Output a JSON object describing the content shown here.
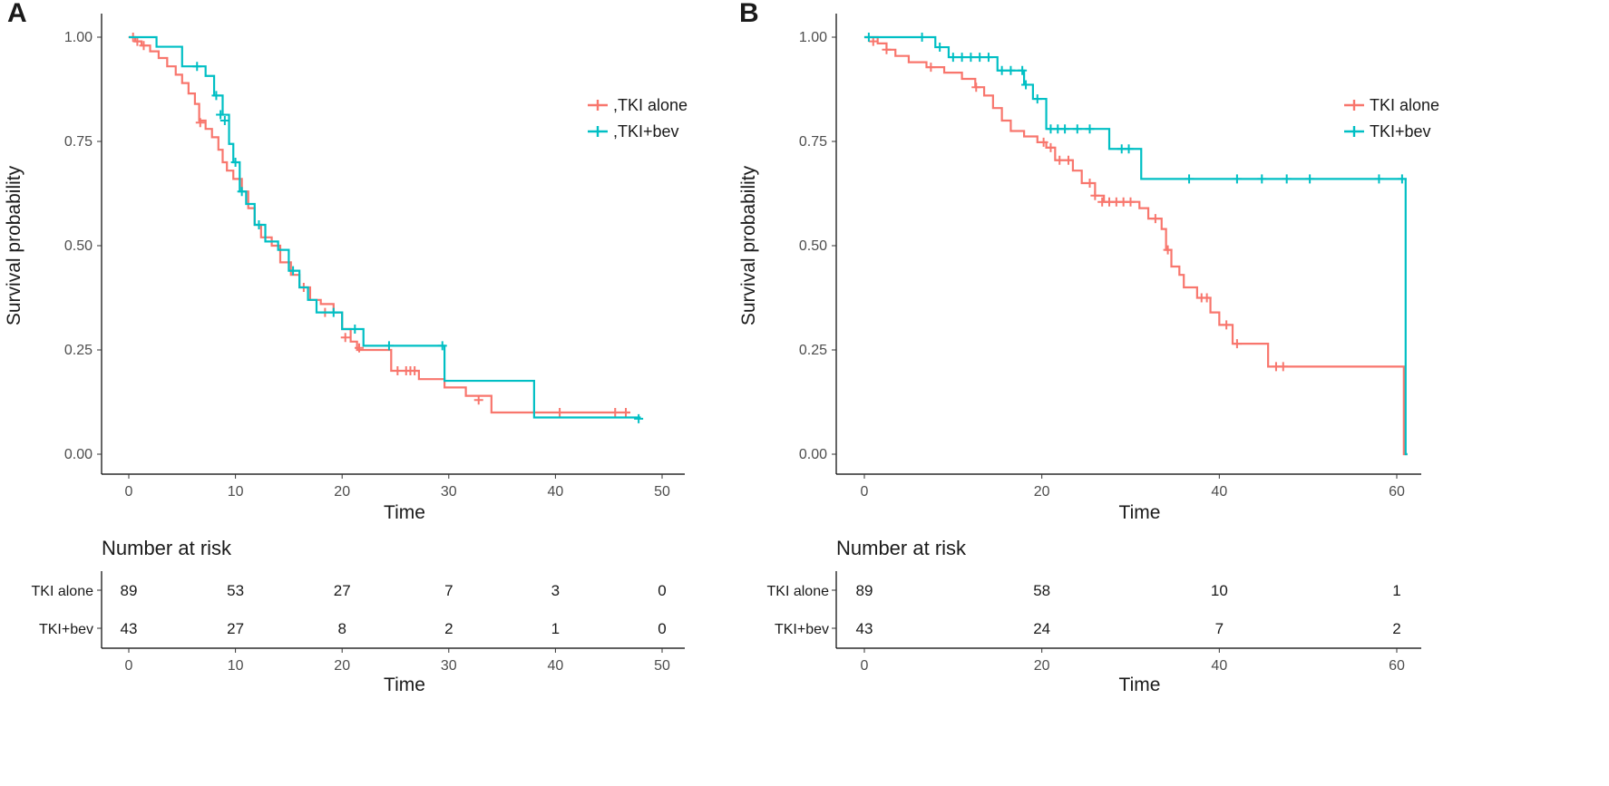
{
  "chart_data": [
    {
      "type": "line",
      "panel": "A",
      "title": "",
      "xlabel": "Time",
      "ylabel": "Survival probability",
      "xlim": [
        0,
        50
      ],
      "ylim": [
        0,
        1
      ],
      "x_ticks": [
        "0",
        "10",
        "20",
        "30",
        "40",
        "50"
      ],
      "y_ticks": [
        "0.00",
        "0.25",
        "0.50",
        "0.75",
        "1.00"
      ],
      "grid": false,
      "legend_position": "right",
      "legend": [
        ",TKI alone",
        ",TKI+bev"
      ],
      "series": [
        {
          "name": "TKI alone",
          "color": "#f8766d",
          "steps": [
            [
              0,
              1.0
            ],
            [
              0.6,
              0.99
            ],
            [
              1.2,
              0.98
            ],
            [
              2.0,
              0.966
            ],
            [
              2.8,
              0.95
            ],
            [
              3.6,
              0.93
            ],
            [
              4.4,
              0.91
            ],
            [
              5.0,
              0.89
            ],
            [
              5.6,
              0.865
            ],
            [
              6.2,
              0.84
            ],
            [
              6.6,
              0.8
            ],
            [
              7.2,
              0.78
            ],
            [
              7.8,
              0.76
            ],
            [
              8.4,
              0.73
            ],
            [
              8.8,
              0.7
            ],
            [
              9.2,
              0.68
            ],
            [
              9.8,
              0.66
            ],
            [
              10.6,
              0.63
            ],
            [
              11.2,
              0.59
            ],
            [
              11.8,
              0.55
            ],
            [
              12.4,
              0.52
            ],
            [
              13.4,
              0.5
            ],
            [
              14.2,
              0.46
            ],
            [
              15.2,
              0.43
            ],
            [
              16.0,
              0.4
            ],
            [
              17.0,
              0.37
            ],
            [
              18.0,
              0.36
            ],
            [
              19.2,
              0.34
            ],
            [
              20.0,
              0.3
            ],
            [
              20.8,
              0.27
            ],
            [
              21.4,
              0.25
            ],
            [
              24.6,
              0.2
            ],
            [
              27.2,
              0.18
            ],
            [
              29.6,
              0.16
            ],
            [
              31.6,
              0.14
            ],
            [
              34.0,
              0.1
            ],
            [
              47.0,
              0.1
            ]
          ],
          "censor": [
            [
              0.4,
              1.0
            ],
            [
              0.8,
              0.99
            ],
            [
              1.4,
              0.98
            ],
            [
              6.7,
              0.795
            ],
            [
              16.4,
              0.4
            ],
            [
              18.4,
              0.34
            ],
            [
              20.3,
              0.28
            ],
            [
              21.6,
              0.255
            ],
            [
              25.2,
              0.2
            ],
            [
              26.0,
              0.2
            ],
            [
              26.4,
              0.2
            ],
            [
              26.8,
              0.2
            ],
            [
              32.8,
              0.13
            ],
            [
              40.4,
              0.1
            ],
            [
              45.6,
              0.1
            ],
            [
              46.6,
              0.1
            ]
          ]
        },
        {
          "name": "TKI+bev",
          "color": "#00bfc4",
          "steps": [
            [
              0,
              1.0
            ],
            [
              2.6,
              0.977
            ],
            [
              5.0,
              0.93
            ],
            [
              7.2,
              0.907
            ],
            [
              8.0,
              0.86
            ],
            [
              8.8,
              0.814
            ],
            [
              9.4,
              0.744
            ],
            [
              9.8,
              0.7
            ],
            [
              10.4,
              0.63
            ],
            [
              11.0,
              0.6
            ],
            [
              11.8,
              0.55
            ],
            [
              12.8,
              0.51
            ],
            [
              14.0,
              0.49
            ],
            [
              15.0,
              0.44
            ],
            [
              16.0,
              0.4
            ],
            [
              16.8,
              0.37
            ],
            [
              17.6,
              0.34
            ],
            [
              20.0,
              0.3
            ],
            [
              22.0,
              0.26
            ],
            [
              29.6,
              0.176
            ],
            [
              38.0,
              0.088
            ],
            [
              48.0,
              0.088
            ]
          ],
          "censor": [
            [
              6.4,
              0.93
            ],
            [
              8.2,
              0.86
            ],
            [
              8.6,
              0.814
            ],
            [
              9.0,
              0.8
            ],
            [
              10.0,
              0.7
            ],
            [
              10.6,
              0.63
            ],
            [
              12.2,
              0.55
            ],
            [
              15.4,
              0.44
            ],
            [
              19.2,
              0.34
            ],
            [
              21.2,
              0.3
            ],
            [
              24.4,
              0.26
            ],
            [
              29.4,
              0.26
            ],
            [
              47.8,
              0.085
            ]
          ]
        }
      ],
      "risk_table": {
        "title": "Number at risk",
        "xlabel": "Time",
        "x_ticks": [
          "0",
          "10",
          "20",
          "30",
          "40",
          "50"
        ],
        "rows": [
          {
            "label": "TKI alone",
            "values": [
              "89",
              "53",
              "27",
              "7",
              "3",
              "0"
            ]
          },
          {
            "label": "TKI+bev",
            "values": [
              "43",
              "27",
              "8",
              "2",
              "1",
              "0"
            ]
          }
        ]
      }
    },
    {
      "type": "line",
      "panel": "B",
      "title": "",
      "xlabel": "Time",
      "ylabel": "Survival probability",
      "xlim": [
        0,
        62
      ],
      "ylim": [
        0,
        1
      ],
      "x_ticks": [
        "0",
        "20",
        "40",
        "60"
      ],
      "y_ticks": [
        "0.00",
        "0.25",
        "0.50",
        "0.75",
        "1.00"
      ],
      "grid": false,
      "legend_position": "right",
      "legend": [
        "TKI alone",
        "TKI+bev"
      ],
      "series": [
        {
          "name": "TKI alone",
          "color": "#f8766d",
          "steps": [
            [
              0,
              1.0
            ],
            [
              1.5,
              0.985
            ],
            [
              2.5,
              0.97
            ],
            [
              3.5,
              0.955
            ],
            [
              5.0,
              0.94
            ],
            [
              7.0,
              0.928
            ],
            [
              9.0,
              0.915
            ],
            [
              11.0,
              0.9
            ],
            [
              12.5,
              0.88
            ],
            [
              13.5,
              0.86
            ],
            [
              14.5,
              0.83
            ],
            [
              15.5,
              0.8
            ],
            [
              16.5,
              0.775
            ],
            [
              18.0,
              0.762
            ],
            [
              19.5,
              0.748
            ],
            [
              20.5,
              0.735
            ],
            [
              21.5,
              0.705
            ],
            [
              23.5,
              0.68
            ],
            [
              24.5,
              0.65
            ],
            [
              26.0,
              0.62
            ],
            [
              27.0,
              0.605
            ],
            [
              31.0,
              0.59
            ],
            [
              32.0,
              0.565
            ],
            [
              33.5,
              0.54
            ],
            [
              34.0,
              0.49
            ],
            [
              34.6,
              0.45
            ],
            [
              35.5,
              0.43
            ],
            [
              36.0,
              0.4
            ],
            [
              37.5,
              0.375
            ],
            [
              39.0,
              0.34
            ],
            [
              40.0,
              0.31
            ],
            [
              41.5,
              0.265
            ],
            [
              45.5,
              0.21
            ],
            [
              60.8,
              0.21
            ],
            [
              60.8,
              0.0
            ],
            [
              61.2,
              0.0
            ]
          ],
          "censor": [
            [
              1.0,
              0.99
            ],
            [
              2.5,
              0.97
            ],
            [
              7.5,
              0.928
            ],
            [
              12.6,
              0.88
            ],
            [
              20.2,
              0.748
            ],
            [
              21.0,
              0.735
            ],
            [
              22.0,
              0.705
            ],
            [
              23.0,
              0.705
            ],
            [
              25.4,
              0.65
            ],
            [
              26.0,
              0.62
            ],
            [
              26.8,
              0.605
            ],
            [
              27.6,
              0.605
            ],
            [
              28.4,
              0.605
            ],
            [
              29.2,
              0.605
            ],
            [
              30.0,
              0.605
            ],
            [
              32.8,
              0.565
            ],
            [
              34.2,
              0.49
            ],
            [
              38.0,
              0.375
            ],
            [
              38.6,
              0.375
            ],
            [
              40.8,
              0.31
            ],
            [
              42.0,
              0.265
            ],
            [
              46.4,
              0.21
            ],
            [
              47.2,
              0.21
            ]
          ]
        },
        {
          "name": "TKI+bev",
          "color": "#00bfc4",
          "steps": [
            [
              0,
              1.0
            ],
            [
              8.0,
              0.976
            ],
            [
              9.5,
              0.952
            ],
            [
              15.0,
              0.92
            ],
            [
              18.0,
              0.886
            ],
            [
              19.0,
              0.852
            ],
            [
              20.5,
              0.78
            ],
            [
              27.6,
              0.732
            ],
            [
              31.2,
              0.66
            ],
            [
              61.0,
              0.66
            ],
            [
              61.0,
              0.0
            ],
            [
              61.2,
              0.0
            ]
          ],
          "censor": [
            [
              0.5,
              1.0
            ],
            [
              6.5,
              1.0
            ],
            [
              8.5,
              0.976
            ],
            [
              10.0,
              0.952
            ],
            [
              11.0,
              0.952
            ],
            [
              12.0,
              0.952
            ],
            [
              13.0,
              0.952
            ],
            [
              14.0,
              0.952
            ],
            [
              15.5,
              0.92
            ],
            [
              16.5,
              0.92
            ],
            [
              17.8,
              0.92
            ],
            [
              18.2,
              0.886
            ],
            [
              19.5,
              0.852
            ],
            [
              21.0,
              0.78
            ],
            [
              21.8,
              0.78
            ],
            [
              22.6,
              0.78
            ],
            [
              24.0,
              0.78
            ],
            [
              25.4,
              0.78
            ],
            [
              29.0,
              0.732
            ],
            [
              29.8,
              0.732
            ],
            [
              36.6,
              0.66
            ],
            [
              42.0,
              0.66
            ],
            [
              44.8,
              0.66
            ],
            [
              47.6,
              0.66
            ],
            [
              50.2,
              0.66
            ],
            [
              58.0,
              0.66
            ],
            [
              60.6,
              0.66
            ]
          ]
        }
      ],
      "risk_table": {
        "title": "Number at risk",
        "xlabel": "Time",
        "x_ticks": [
          "0",
          "20",
          "40",
          "60"
        ],
        "rows": [
          {
            "label": "TKI alone",
            "values": [
              "89",
              "58",
              "10",
              "1"
            ]
          },
          {
            "label": "TKI+bev",
            "values": [
              "43",
              "24",
              "7",
              "2"
            ]
          }
        ]
      }
    }
  ]
}
